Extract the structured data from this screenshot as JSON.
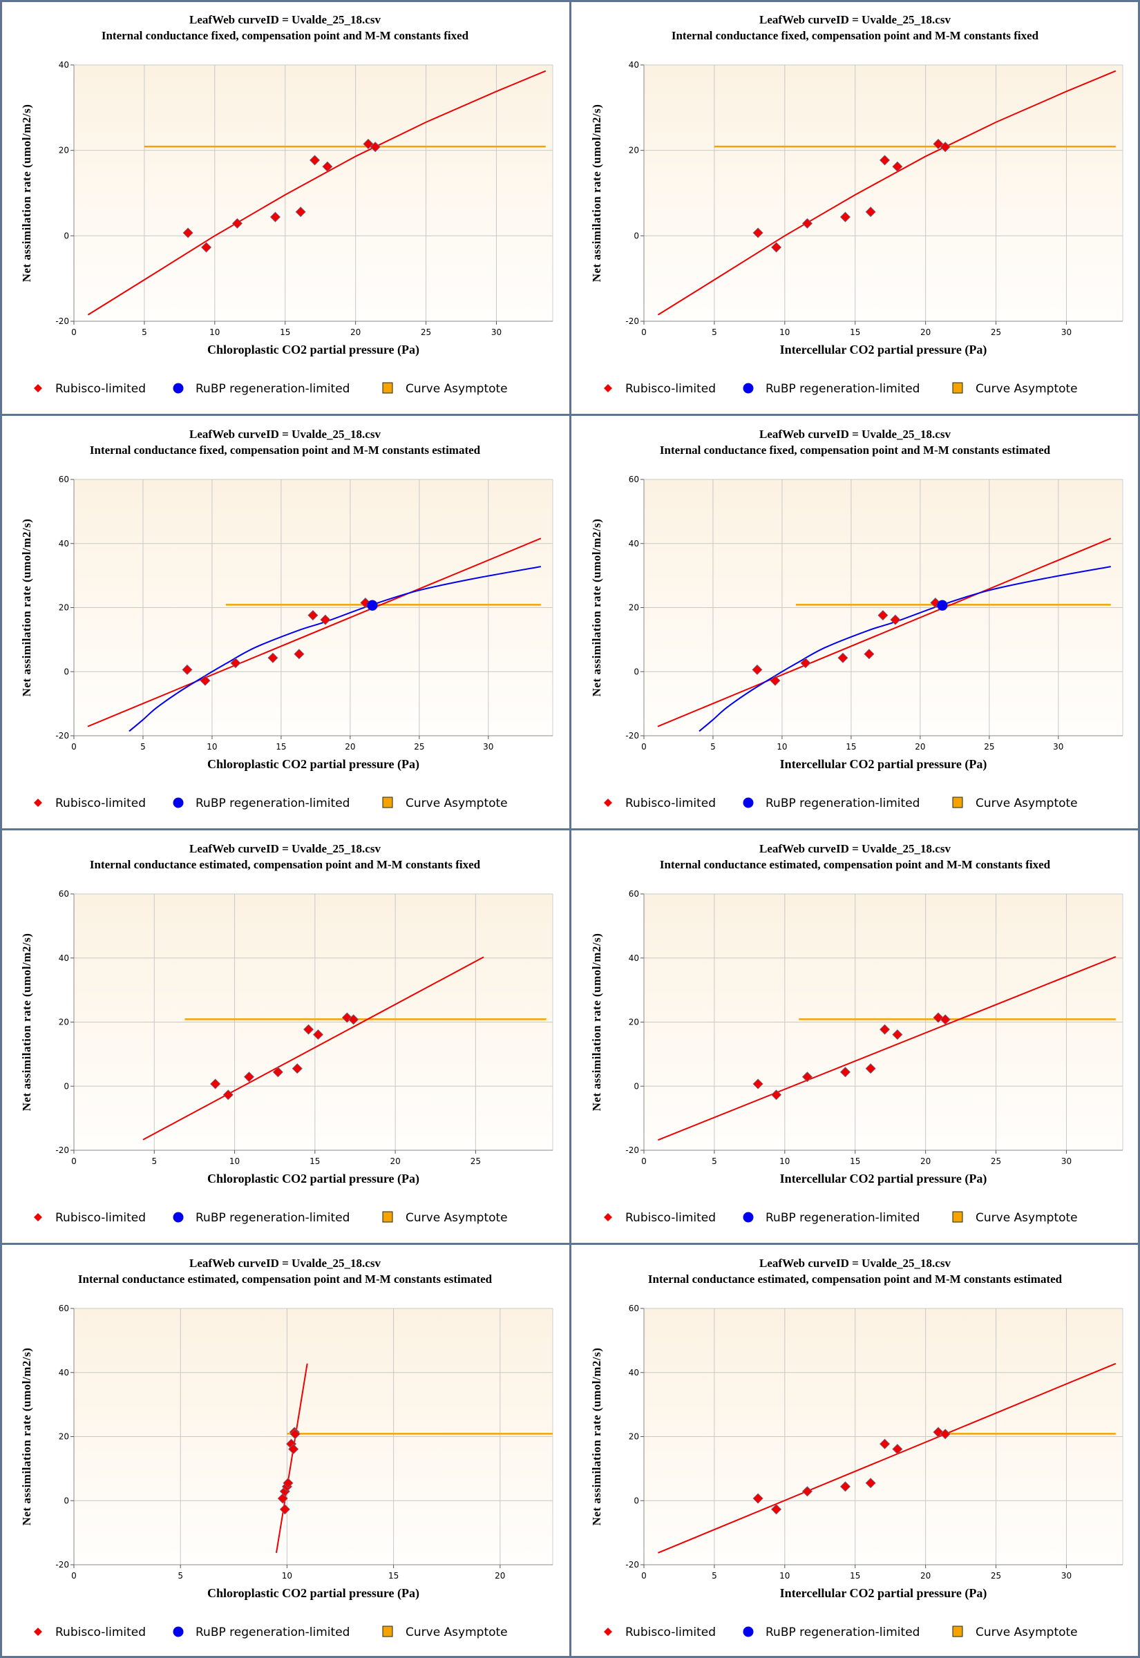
{
  "colors": {
    "rubisco": "#ee0000",
    "rubp": "#0000ee",
    "asymptote": "#f5a300",
    "marker_outline": "#6b6b8a",
    "frame": "#5e7492",
    "grid": "#c8c8c8"
  },
  "legend": {
    "rubisco_label": "Rubisco-limited",
    "rubp_label": "RuBP regeneration-limited",
    "asymptote_label": "Curve Asymptote"
  },
  "chart_data": [
    {
      "type": "scatter",
      "title": "LeafWeb curveID = Uvalde_25_18.csv",
      "subtitle": "Internal conductance fixed, compensation point and M-M constants fixed",
      "xlabel": "Chloroplastic CO2 partial pressure (Pa)",
      "ylabel": "Net assimilation rate (umol/m2/s)",
      "xlim": [
        0,
        34.0
      ],
      "ylim": [
        -20,
        40
      ],
      "xticks": [
        0,
        5,
        10,
        15,
        20,
        25,
        30
      ],
      "yticks": [
        -20,
        0,
        20,
        40
      ],
      "grid": true,
      "legend_position": "bottom",
      "series": [
        {
          "name": "Rubisco-limited",
          "kind": "points",
          "x": [
            8.1,
            9.4,
            11.6,
            14.3,
            16.1,
            17.1,
            18.0,
            20.9,
            21.4
          ],
          "y": [
            0.7,
            -2.7,
            2.9,
            4.4,
            5.6,
            17.7,
            16.2,
            21.5,
            20.8
          ]
        },
        {
          "name": "Rubisco-limited fit",
          "kind": "line",
          "x": [
            1.0,
            5.0,
            10.0,
            15.0,
            20.0,
            25.0,
            30.0,
            33.5
          ],
          "y": [
            -18.5,
            -10.3,
            0.0,
            9.6,
            18.6,
            26.6,
            33.8,
            38.6
          ]
        },
        {
          "name": "Curve Asymptote",
          "kind": "hline",
          "x": [
            5.0,
            33.5
          ],
          "y": [
            20.9,
            20.9
          ]
        }
      ]
    },
    {
      "type": "scatter",
      "title": "LeafWeb curveID = Uvalde_25_18.csv",
      "subtitle": "Internal conductance fixed, compensation point and M-M constants fixed",
      "xlabel": "Intercellular CO2 partial pressure (Pa)",
      "ylabel": "Net assimilation rate (umol/m2/s)",
      "xlim": [
        0,
        34.0
      ],
      "ylim": [
        -20,
        40
      ],
      "xticks": [
        0,
        5,
        10,
        15,
        20,
        25,
        30
      ],
      "yticks": [
        -20,
        0,
        20,
        40
      ],
      "grid": true,
      "legend_position": "bottom",
      "series": [
        {
          "name": "Rubisco-limited",
          "kind": "points",
          "x": [
            8.1,
            9.4,
            11.6,
            14.3,
            16.1,
            17.1,
            18.0,
            20.9,
            21.4
          ],
          "y": [
            0.7,
            -2.7,
            2.9,
            4.4,
            5.6,
            17.7,
            16.2,
            21.5,
            20.8
          ]
        },
        {
          "name": "Rubisco-limited fit",
          "kind": "line",
          "x": [
            1.0,
            5.0,
            10.0,
            15.0,
            20.0,
            25.0,
            30.0,
            33.5
          ],
          "y": [
            -18.5,
            -10.3,
            0.0,
            9.6,
            18.6,
            26.6,
            33.8,
            38.6
          ]
        },
        {
          "name": "Curve Asymptote",
          "kind": "hline",
          "x": [
            5.0,
            33.5
          ],
          "y": [
            20.9,
            20.9
          ]
        }
      ]
    },
    {
      "type": "scatter",
      "title": "LeafWeb curveID = Uvalde_25_18.csv",
      "subtitle": "Internal conductance fixed, compensation point and M-M constants estimated",
      "xlabel": "Chloroplastic CO2 partial pressure (Pa)",
      "ylabel": "Net assimilation rate (umol/m2/s)",
      "xlim": [
        0,
        34.66
      ],
      "ylim": [
        -20,
        60
      ],
      "xticks": [
        0,
        5,
        10,
        15,
        20,
        25,
        30
      ],
      "yticks": [
        -20,
        0,
        20,
        40,
        60
      ],
      "grid": true,
      "legend_position": "bottom",
      "series": [
        {
          "name": "Rubisco-limited",
          "kind": "points",
          "x": [
            8.2,
            9.5,
            11.7,
            14.4,
            16.3,
            17.3,
            18.2,
            21.1
          ],
          "y": [
            0.6,
            -2.8,
            2.7,
            4.3,
            5.5,
            17.6,
            16.2,
            21.5
          ]
        },
        {
          "name": "RuBP regeneration-limited",
          "kind": "points",
          "x": [
            21.6
          ],
          "y": [
            20.7
          ]
        },
        {
          "name": "Rubisco-limited fit",
          "kind": "line",
          "x": [
            1.0,
            33.8
          ],
          "y": [
            -17.1,
            41.6
          ]
        },
        {
          "name": "RuBP regeneration-limited fit",
          "kind": "curve",
          "x": [
            4.0,
            5.0,
            6.0,
            7.8,
            10.0,
            11.0,
            13.1,
            16.2,
            18.3,
            21.6,
            24.9,
            28.9,
            33.8
          ],
          "y": [
            -18.6,
            -15.0,
            -11.2,
            -5.8,
            0.0,
            2.5,
            7.5,
            12.8,
            15.7,
            20.9,
            25.3,
            29.0,
            32.8
          ]
        },
        {
          "name": "Curve Asymptote",
          "kind": "hline",
          "x": [
            11.0,
            33.8
          ],
          "y": [
            20.9,
            20.9
          ]
        }
      ]
    },
    {
      "type": "scatter",
      "title": "LeafWeb curveID = Uvalde_25_18.csv",
      "subtitle": "Internal conductance fixed, compensation point and M-M constants estimated",
      "xlabel": "Intercellular CO2 partial pressure (Pa)",
      "ylabel": "Net assimilation rate (umol/m2/s)",
      "xlim": [
        0,
        34.66
      ],
      "ylim": [
        -20,
        60
      ],
      "xticks": [
        0,
        5,
        10,
        15,
        20,
        25,
        30
      ],
      "yticks": [
        -20,
        0,
        20,
        40,
        60
      ],
      "grid": true,
      "legend_position": "bottom",
      "series": [
        {
          "name": "Rubisco-limited",
          "kind": "points",
          "x": [
            8.2,
            9.5,
            11.7,
            14.4,
            16.3,
            17.3,
            18.2,
            21.1
          ],
          "y": [
            0.6,
            -2.8,
            2.7,
            4.3,
            5.5,
            17.6,
            16.2,
            21.5
          ]
        },
        {
          "name": "RuBP regeneration-limited",
          "kind": "points",
          "x": [
            21.6
          ],
          "y": [
            20.7
          ]
        },
        {
          "name": "Rubisco-limited fit",
          "kind": "line",
          "x": [
            1.0,
            33.8
          ],
          "y": [
            -17.1,
            41.6
          ]
        },
        {
          "name": "RuBP regeneration-limited fit",
          "kind": "curve",
          "x": [
            4.0,
            5.0,
            6.0,
            7.8,
            10.0,
            11.0,
            13.1,
            16.2,
            18.3,
            21.6,
            24.9,
            28.9,
            33.8
          ],
          "y": [
            -18.6,
            -15.0,
            -11.2,
            -5.8,
            0.0,
            2.5,
            7.5,
            12.8,
            15.7,
            20.9,
            25.3,
            29.0,
            32.8
          ]
        },
        {
          "name": "Curve Asymptote",
          "kind": "hline",
          "x": [
            11.0,
            33.8
          ],
          "y": [
            20.9,
            20.9
          ]
        }
      ]
    },
    {
      "type": "scatter",
      "title": "LeafWeb curveID = Uvalde_25_18.csv",
      "subtitle": "Internal conductance estimated, compensation point and M-M constants fixed",
      "xlabel": "Chloroplastic CO2 partial pressure (Pa)",
      "ylabel": "Net assimilation rate (umol/m2/s)",
      "xlim": [
        0,
        29.8
      ],
      "ylim": [
        -20,
        60
      ],
      "xticks": [
        0,
        5,
        10,
        15,
        20,
        25
      ],
      "yticks": [
        -20,
        0,
        20,
        40,
        60
      ],
      "grid": true,
      "legend_position": "bottom",
      "series": [
        {
          "name": "Rubisco-limited",
          "kind": "points",
          "x": [
            8.8,
            9.6,
            10.9,
            12.7,
            13.9,
            14.6,
            15.2,
            17.0,
            17.4
          ],
          "y": [
            0.7,
            -2.7,
            2.9,
            4.4,
            5.5,
            17.7,
            16.1,
            21.4,
            20.8
          ]
        },
        {
          "name": "Rubisco-limited fit",
          "kind": "line",
          "x": [
            4.3,
            25.5
          ],
          "y": [
            -16.7,
            40.3
          ]
        },
        {
          "name": "Curve Asymptote",
          "kind": "hline",
          "x": [
            6.9,
            29.4
          ],
          "y": [
            20.9,
            20.9
          ]
        }
      ]
    },
    {
      "type": "scatter",
      "title": "LeafWeb curveID = Uvalde_25_18.csv",
      "subtitle": "Internal conductance estimated, compensation point and M-M constants fixed",
      "xlabel": "Intercellular CO2 partial pressure (Pa)",
      "ylabel": "Net assimilation rate (umol/m2/s)",
      "xlim": [
        0,
        34.0
      ],
      "ylim": [
        -20,
        60
      ],
      "xticks": [
        0,
        5,
        10,
        15,
        20,
        25,
        30
      ],
      "yticks": [
        -20,
        0,
        20,
        40,
        60
      ],
      "grid": true,
      "legend_position": "bottom",
      "series": [
        {
          "name": "Rubisco-limited",
          "kind": "points",
          "x": [
            8.1,
            9.4,
            11.6,
            14.3,
            16.1,
            17.1,
            18.0,
            20.9,
            21.4
          ],
          "y": [
            0.7,
            -2.7,
            2.9,
            4.4,
            5.5,
            17.7,
            16.1,
            21.4,
            20.8
          ]
        },
        {
          "name": "Rubisco-limited fit",
          "kind": "line",
          "x": [
            1.0,
            33.5
          ],
          "y": [
            -16.8,
            40.4
          ]
        },
        {
          "name": "Curve Asymptote",
          "kind": "hline",
          "x": [
            11.0,
            33.5
          ],
          "y": [
            20.9,
            20.9
          ]
        }
      ]
    },
    {
      "type": "scatter",
      "title": "LeafWeb curveID = Uvalde_25_18.csv",
      "subtitle": "Internal conductance estimated, compensation point and M-M constants estimated",
      "xlabel": "Chloroplastic CO2 partial pressure (Pa)",
      "ylabel": "Net assimilation rate (umol/m2/s)",
      "xlim": [
        0,
        22.47
      ],
      "ylim": [
        -20,
        60
      ],
      "xticks": [
        0,
        5,
        10,
        15,
        20
      ],
      "yticks": [
        -20,
        0,
        20,
        40,
        60
      ],
      "grid": true,
      "legend_position": "bottom",
      "series": [
        {
          "name": "Rubisco-limited",
          "kind": "points",
          "x": [
            9.8,
            9.9,
            9.9,
            10.0,
            10.05,
            10.2,
            10.3,
            10.35,
            10.38
          ],
          "y": [
            0.7,
            -2.7,
            2.9,
            4.4,
            5.5,
            17.7,
            16.1,
            21.4,
            20.8
          ]
        },
        {
          "name": "Rubisco-limited fit",
          "kind": "line",
          "x": [
            9.5,
            10.95
          ],
          "y": [
            -16.3,
            42.8
          ]
        },
        {
          "name": "Curve Asymptote",
          "kind": "hline",
          "x": [
            10.0,
            22.47
          ],
          "y": [
            20.9,
            20.9
          ]
        }
      ]
    },
    {
      "type": "scatter",
      "title": "LeafWeb curveID = Uvalde_25_18.csv",
      "subtitle": "Internal conductance estimated, compensation point and M-M constants estimated",
      "xlabel": "Intercellular CO2 partial pressure (Pa)",
      "ylabel": "Net assimilation rate (umol/m2/s)",
      "xlim": [
        0,
        34.0
      ],
      "ylim": [
        -20,
        60
      ],
      "xticks": [
        0,
        5,
        10,
        15,
        20,
        25,
        30
      ],
      "yticks": [
        -20,
        0,
        20,
        40,
        60
      ],
      "grid": true,
      "legend_position": "bottom",
      "series": [
        {
          "name": "Rubisco-limited",
          "kind": "points",
          "x": [
            8.1,
            9.4,
            11.6,
            14.3,
            16.1,
            17.1,
            18.0,
            20.9,
            21.4
          ],
          "y": [
            0.7,
            -2.7,
            2.9,
            4.4,
            5.5,
            17.7,
            16.1,
            21.4,
            20.8
          ]
        },
        {
          "name": "Rubisco-limited fit",
          "kind": "line",
          "x": [
            1.0,
            33.5
          ],
          "y": [
            -16.3,
            42.8
          ]
        },
        {
          "name": "Curve Asymptote",
          "kind": "hline",
          "x": [
            20.9,
            33.5
          ],
          "y": [
            20.9,
            20.9
          ]
        }
      ]
    }
  ]
}
